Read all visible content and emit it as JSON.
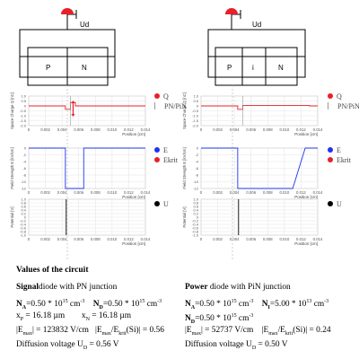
{
  "colors": {
    "q_red": "#e8202a",
    "e_blue": "#2233ee",
    "u_black": "#000000",
    "grid": "#e6e6e6",
    "axis": "#999999",
    "junction": "#bbbbbb"
  },
  "diagrams": {
    "left": {
      "source_label": "Ud",
      "region_p": "P",
      "region_n": "N"
    },
    "right": {
      "source_label": "Ud",
      "region_p": "P",
      "region_i": "i",
      "region_n": "N"
    }
  },
  "plots": {
    "x_label": "Position [cm]",
    "x_ticks": [
      "0",
      "0.002",
      "0.004",
      "0.006",
      "0.008",
      "0.010",
      "0.012",
      "0.014"
    ],
    "charge": {
      "y_label": "Space Charge Q [nC]",
      "y_ticks": [
        "1.0",
        "0.5",
        "0",
        "-0.5",
        "-1.0",
        "-1.5",
        "-2.0"
      ]
    },
    "field": {
      "y_label": "Field Strength E [kV/cm]",
      "y_ticks": [
        "0",
        "-2",
        "-4",
        "-6",
        "-8",
        "-10",
        "-12"
      ]
    },
    "potential": {
      "y_label": "Potential [V]",
      "y_ticks": [
        "1.0",
        "0.8",
        "0.6",
        "0.4",
        "0.2",
        "0",
        "-0.2",
        "-0.4",
        "-0.6",
        "-0.8",
        "-1.0"
      ]
    }
  },
  "legends": {
    "charge": {
      "q": "Q",
      "junction": "PN/PiN"
    },
    "field": {
      "e": "E",
      "ekrit": "Ekrit"
    },
    "potential": {
      "u": "U"
    }
  },
  "chart_data": [
    {
      "type": "line",
      "name": "signal-charge",
      "x_junction": 0.005,
      "depletion": [
        0.0044,
        0.0056
      ],
      "y_neg": -0.35,
      "y_pos": 0.35
    },
    {
      "type": "line",
      "name": "signal-field",
      "depletion": [
        0.0044,
        0.0066
      ],
      "y_min": -12
    },
    {
      "type": "line",
      "name": "signal-potential",
      "x_drop": 0.0045
    },
    {
      "type": "line",
      "name": "power-charge",
      "x_junction": 0.005,
      "depletion": [
        0.0044,
        0.013
      ],
      "y_neg": -0.35,
      "y_pos": 0.05
    },
    {
      "type": "line",
      "name": "power-field",
      "depletion": [
        0.0044,
        0.0125
      ],
      "y_min": -12
    },
    {
      "type": "line",
      "name": "power-potential",
      "x_drop": 0.0045
    }
  ],
  "values": {
    "title": "Values of the circuit",
    "signal": {
      "heading_bold": "Signal",
      "heading_rest": "diode with PN junction",
      "na": "N",
      "na_sub": "A",
      "na_val": "=0.50 * 10",
      "na_exp": "15",
      "na_unit": " cm",
      "na_uexp": "-3",
      "nd": "N",
      "nd_sub": "D",
      "nd_val": "=0.50 * 10",
      "nd_exp": "15",
      "nd_unit": " cm",
      "nd_uexp": "-3",
      "xp": "x",
      "xp_sub": "P",
      "xp_val": " = 16.18 µm",
      "xn": "x",
      "xn_sub": "N",
      "xn_val": " = 16.18 µm",
      "emax": "|E",
      "emax_sub": "max",
      "emax_val": "| = 123832 V/cm",
      "ratio": "|E",
      "ratio_sub1": "max",
      "ratio_mid": "/E",
      "ratio_sub2": "krit",
      "ratio_val": "(Si)| = 0.56",
      "diff": "Diffusion voltage U",
      "diff_sub": "D",
      "diff_val": " = 0.56 V"
    },
    "power": {
      "heading_bold": "Power",
      "heading_rest": " diode with PiN junction",
      "na": "N",
      "na_sub": "A",
      "na_val": "=0.50 * 10",
      "na_exp": "15",
      "na_unit": " cm",
      "na_uexp": "-3",
      "ni": "N",
      "ni_sub": "I",
      "ni_val": "=5.00 * 10",
      "ni_exp": "13",
      "ni_unit": " cm",
      "ni_uexp": "-3",
      "nd": "N",
      "nd_sub": "D",
      "nd_val": "=0.50 * 10",
      "nd_exp": "15",
      "nd_unit": " cm",
      "nd_uexp": "-3",
      "emax": "|E",
      "emax_sub": "max",
      "emax_val": "| = 52737 V/cm",
      "ratio": "|E",
      "ratio_sub1": "max",
      "ratio_mid": "/E",
      "ratio_sub2": "krit",
      "ratio_val": "(Si)| = 0.24",
      "diff": "Diffusion voltage U",
      "diff_sub": "D",
      "diff_val": " = 0.50 V"
    }
  }
}
